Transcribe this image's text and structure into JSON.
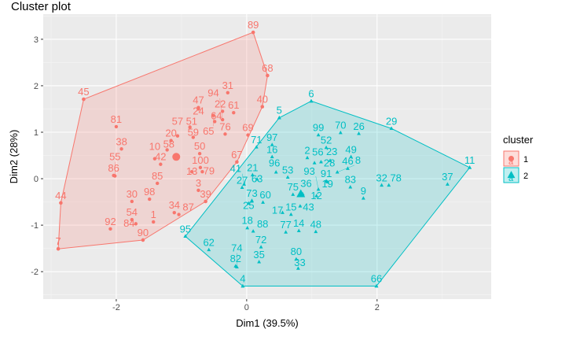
{
  "chart_data": {
    "type": "scatter",
    "title": "Cluster plot",
    "xlabel": "Dim1 (39.5%)",
    "ylabel": "Dim2 (28%)",
    "xlim": [
      -3.12,
      3.75
    ],
    "ylim": [
      -2.59,
      3.54
    ],
    "xticks": [
      -2,
      0,
      2
    ],
    "yticks": [
      -2,
      -1,
      0,
      1,
      2,
      3
    ],
    "grid": true,
    "legend": {
      "title": "cluster",
      "position": "right",
      "entries": [
        "1",
        "2"
      ],
      "key_letter": "a"
    },
    "series": [
      {
        "name": "1",
        "color": "#F8766D",
        "shape": "circle",
        "centroid": [
          -1.08,
          0.47
        ],
        "points": [
          {
            "label": "89",
            "x": 0.1,
            "y": 3.15
          },
          {
            "label": "68",
            "x": 0.32,
            "y": 2.22
          },
          {
            "label": "45",
            "x": -2.5,
            "y": 1.71
          },
          {
            "label": "31",
            "x": -0.29,
            "y": 1.85
          },
          {
            "label": "40",
            "x": 0.24,
            "y": 1.55
          },
          {
            "label": "47",
            "x": -0.74,
            "y": 1.53
          },
          {
            "label": "24",
            "x": -0.74,
            "y": 1.5
          },
          {
            "label": "65",
            "x": -0.51,
            "y": 1.36
          },
          {
            "label": "22",
            "x": -0.37,
            "y": 1.45
          },
          {
            "label": "61",
            "x": -0.2,
            "y": 1.42
          },
          {
            "label": "64",
            "x": -0.49,
            "y": 1.23
          },
          {
            "label": "94",
            "x": -0.37,
            "y": 1.27
          },
          {
            "label": "81",
            "x": -2.0,
            "y": 1.12
          },
          {
            "label": "51",
            "x": -0.87,
            "y": 1.11
          },
          {
            "label": "76",
            "x": -0.33,
            "y": 0.96
          },
          {
            "label": "69",
            "x": 0.02,
            "y": 0.94
          },
          {
            "label": "57",
            "x": -1.06,
            "y": 0.92
          },
          {
            "label": "59",
            "x": -0.82,
            "y": 0.89
          },
          {
            "label": "20",
            "x": -1.16,
            "y": 0.82
          },
          {
            "label": "38",
            "x": -1.92,
            "y": 0.64
          },
          {
            "label": "58",
            "x": -1.22,
            "y": 0.62
          },
          {
            "label": "50",
            "x": -0.72,
            "y": 0.54
          },
          {
            "label": "10",
            "x": -1.41,
            "y": 0.43
          },
          {
            "label": "67",
            "x": -0.15,
            "y": 0.36
          },
          {
            "label": "42",
            "x": -1.32,
            "y": 0.31
          },
          {
            "label": "100",
            "x": -0.71,
            "y": 0.24
          },
          {
            "label": "13",
            "x": -0.84,
            "y": 0.15
          },
          {
            "label": "79",
            "x": -0.68,
            "y": 0.15
          },
          {
            "label": "86",
            "x": -2.04,
            "y": 0.07
          },
          {
            "label": "55",
            "x": -2.02,
            "y": 0.06
          },
          {
            "label": "85",
            "x": -1.37,
            "y": -0.1
          },
          {
            "label": "3",
            "x": -0.74,
            "y": -0.25
          },
          {
            "label": "30",
            "x": -1.76,
            "y": -0.49
          },
          {
            "label": "98",
            "x": -1.49,
            "y": -0.44
          },
          {
            "label": "39",
            "x": -0.63,
            "y": -0.49
          },
          {
            "label": "44",
            "x": -2.85,
            "y": -0.52
          },
          {
            "label": "34",
            "x": -1.11,
            "y": -0.73
          },
          {
            "label": "87",
            "x": -1.04,
            "y": -0.77
          },
          {
            "label": "54",
            "x": -1.76,
            "y": -0.88
          },
          {
            "label": "84",
            "x": -1.7,
            "y": -0.97
          },
          {
            "label": "1",
            "x": -1.43,
            "y": -0.93
          },
          {
            "label": "92",
            "x": -2.09,
            "y": -1.08
          },
          {
            "label": "90",
            "x": -1.59,
            "y": -1.32
          },
          {
            "label": "7",
            "x": -2.89,
            "y": -1.51
          }
        ]
      },
      {
        "name": "2",
        "color": "#00BFC4",
        "shape": "triangle",
        "centroid": [
          0.83,
          -0.33
        ],
        "points": [
          {
            "label": "6",
            "x": 0.99,
            "y": 1.67
          },
          {
            "label": "5",
            "x": 0.5,
            "y": 1.31
          },
          {
            "label": "29",
            "x": 2.22,
            "y": 1.08
          },
          {
            "label": "70",
            "x": 1.44,
            "y": 0.99
          },
          {
            "label": "26",
            "x": 1.72,
            "y": 0.97
          },
          {
            "label": "99",
            "x": 1.1,
            "y": 0.94
          },
          {
            "label": "71",
            "x": 0.15,
            "y": 0.68
          },
          {
            "label": "97",
            "x": 0.39,
            "y": 0.73
          },
          {
            "label": "52",
            "x": 1.22,
            "y": 0.67
          },
          {
            "label": "16",
            "x": 0.39,
            "y": 0.47
          },
          {
            "label": "49",
            "x": 1.6,
            "y": 0.47
          },
          {
            "label": "2",
            "x": 0.93,
            "y": 0.45
          },
          {
            "label": "56",
            "x": 1.04,
            "y": 0.34
          },
          {
            "label": "28",
            "x": 1.14,
            "y": 0.36
          },
          {
            "label": "23",
            "x": 1.28,
            "y": 0.39
          },
          {
            "label": "11",
            "x": 3.42,
            "y": 0.24
          },
          {
            "label": "46",
            "x": 1.55,
            "y": 0.22
          },
          {
            "label": "96",
            "x": 0.45,
            "y": 0.14
          },
          {
            "label": "8",
            "x": 1.39,
            "y": 0.14
          },
          {
            "label": "21",
            "x": 0.09,
            "y": 0.08
          },
          {
            "label": "53",
            "x": 0.63,
            "y": 0.03
          },
          {
            "label": "63",
            "x": 0.16,
            "y": -0.01
          },
          {
            "label": "91",
            "x": 1.22,
            "y": -0.05
          },
          {
            "label": "19",
            "x": 1.24,
            "y": -0.07
          },
          {
            "label": "37",
            "x": 3.08,
            "y": -0.12
          },
          {
            "label": "41",
            "x": -0.04,
            "y": -0.12
          },
          {
            "label": "32",
            "x": 2.07,
            "y": -0.14
          },
          {
            "label": "78",
            "x": 2.18,
            "y": -0.14
          },
          {
            "label": "83",
            "x": 1.59,
            "y": -0.18
          },
          {
            "label": "27",
            "x": -0.07,
            "y": -0.19
          },
          {
            "label": "93",
            "x": 1.1,
            "y": -0.23
          },
          {
            "label": "36",
            "x": 0.86,
            "y": -0.33
          },
          {
            "label": "75",
            "x": 0.71,
            "y": -0.34
          },
          {
            "label": "12",
            "x": 1.07,
            "y": -0.37
          },
          {
            "label": "9",
            "x": 1.79,
            "y": -0.42
          },
          {
            "label": "73",
            "x": 0.08,
            "y": -0.47
          },
          {
            "label": "60",
            "x": 0.25,
            "y": -0.51
          },
          {
            "label": "25",
            "x": 0.03,
            "y": -0.53
          },
          {
            "label": "43",
            "x": 0.82,
            "y": -0.59
          },
          {
            "label": "17",
            "x": 0.55,
            "y": -0.73
          },
          {
            "label": "15",
            "x": 0.68,
            "y": -0.77
          },
          {
            "label": "18",
            "x": 0.01,
            "y": -1.06
          },
          {
            "label": "14",
            "x": 0.8,
            "y": -1.12
          },
          {
            "label": "88",
            "x": 0.1,
            "y": -1.13
          },
          {
            "label": "48",
            "x": 1.06,
            "y": -1.14
          },
          {
            "label": "77",
            "x": 0.6,
            "y": -1.15
          },
          {
            "label": "95",
            "x": -0.94,
            "y": -1.24
          },
          {
            "label": "72",
            "x": 0.22,
            "y": -1.47
          },
          {
            "label": "62",
            "x": -0.58,
            "y": -1.53
          },
          {
            "label": "80",
            "x": 0.76,
            "y": -1.73
          },
          {
            "label": "35",
            "x": 0.19,
            "y": -1.79
          },
          {
            "label": "82",
            "x": -0.17,
            "y": -1.88
          },
          {
            "label": "74",
            "x": -0.15,
            "y": -1.9
          },
          {
            "label": "33",
            "x": 0.79,
            "y": -1.93
          },
          {
            "label": "4",
            "x": -0.06,
            "y": -2.31
          },
          {
            "label": "66",
            "x": 1.99,
            "y": -2.31
          }
        ]
      }
    ]
  }
}
